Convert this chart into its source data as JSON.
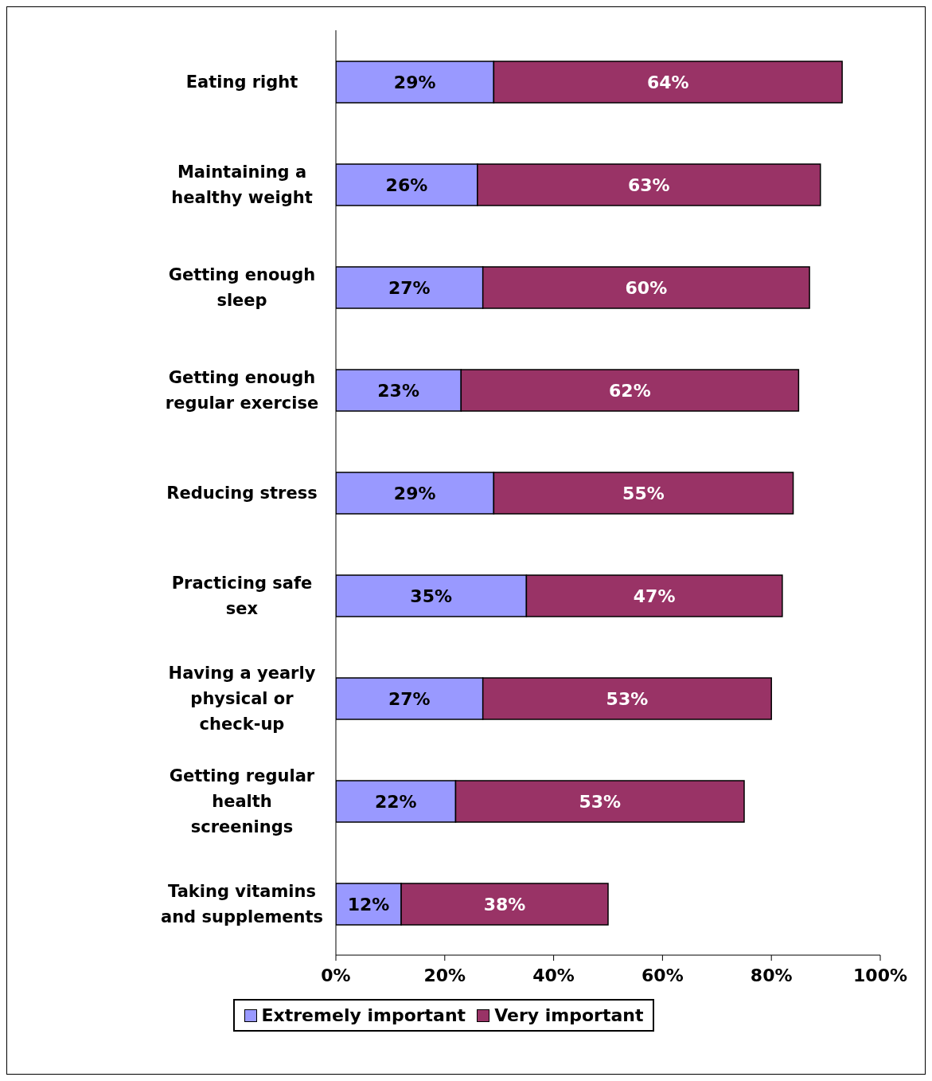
{
  "chart_data": {
    "type": "bar",
    "orientation": "horizontal",
    "stacked": true,
    "categories": [
      "Eating right",
      "Maintaining a healthy weight",
      "Getting enough sleep",
      "Getting enough regular exercise",
      "Reducing stress",
      "Practicing safe sex",
      "Having a yearly physical or check-up",
      "Getting regular health screenings",
      "Taking vitamins and supplements"
    ],
    "series": [
      {
        "name": "Extremely important",
        "color": "#9999ff",
        "values": [
          29,
          26,
          27,
          23,
          29,
          35,
          27,
          22,
          12
        ],
        "value_labels": [
          "29%",
          "26%",
          "27%",
          "23%",
          "29%",
          "35%",
          "27%",
          "22%",
          "12%"
        ]
      },
      {
        "name": "Very important",
        "color": "#993366",
        "values": [
          64,
          63,
          60,
          62,
          55,
          47,
          53,
          53,
          38
        ],
        "value_labels": [
          "64%",
          "63%",
          "60%",
          "62%",
          "55%",
          "47%",
          "53%",
          "53%",
          "38%"
        ]
      }
    ],
    "xlim": [
      0,
      100
    ],
    "xticks": [
      {
        "value": 0,
        "label": "0%"
      },
      {
        "value": 20,
        "label": "20%"
      },
      {
        "value": 40,
        "label": "40%"
      },
      {
        "value": 60,
        "label": "60%"
      },
      {
        "value": 80,
        "label": "80%"
      },
      {
        "value": 100,
        "label": "100%"
      }
    ],
    "grid": false,
    "legend": "bottom"
  }
}
